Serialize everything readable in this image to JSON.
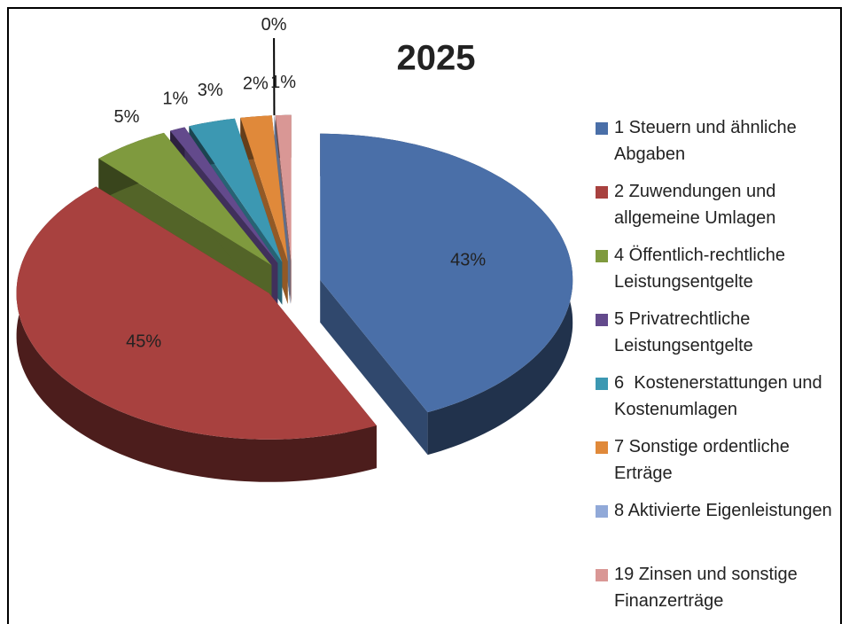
{
  "chart_data": {
    "type": "pie",
    "title": "2025",
    "categories": [
      "1 Steuern und ähnliche Abgaben",
      "2 Zuwendungen und allgemeine Umlagen",
      "4 Öffentlich-rechtliche Leistungsentgelte",
      "5 Privatrechtliche Leistungsentgelte",
      "6  Kostenerstattungen und Kostenumlagen",
      "7 Sonstige ordentliche Erträge",
      "8 Aktivierte Eigenleistungen",
      "19 Zinsen und sonstige Finanzerträge"
    ],
    "values": [
      43,
      45,
      5,
      1,
      3,
      2,
      0,
      1
    ],
    "value_labels": [
      "43%",
      "45%",
      "5%",
      "1%",
      "3%",
      "2%",
      "0%",
      "1%"
    ],
    "colors": [
      "#4a6fa8",
      "#a8413f",
      "#7f9a3e",
      "#634a8c",
      "#3c98b2",
      "#e0893a",
      "#91a9d8",
      "#d99795"
    ],
    "legend": "right"
  }
}
